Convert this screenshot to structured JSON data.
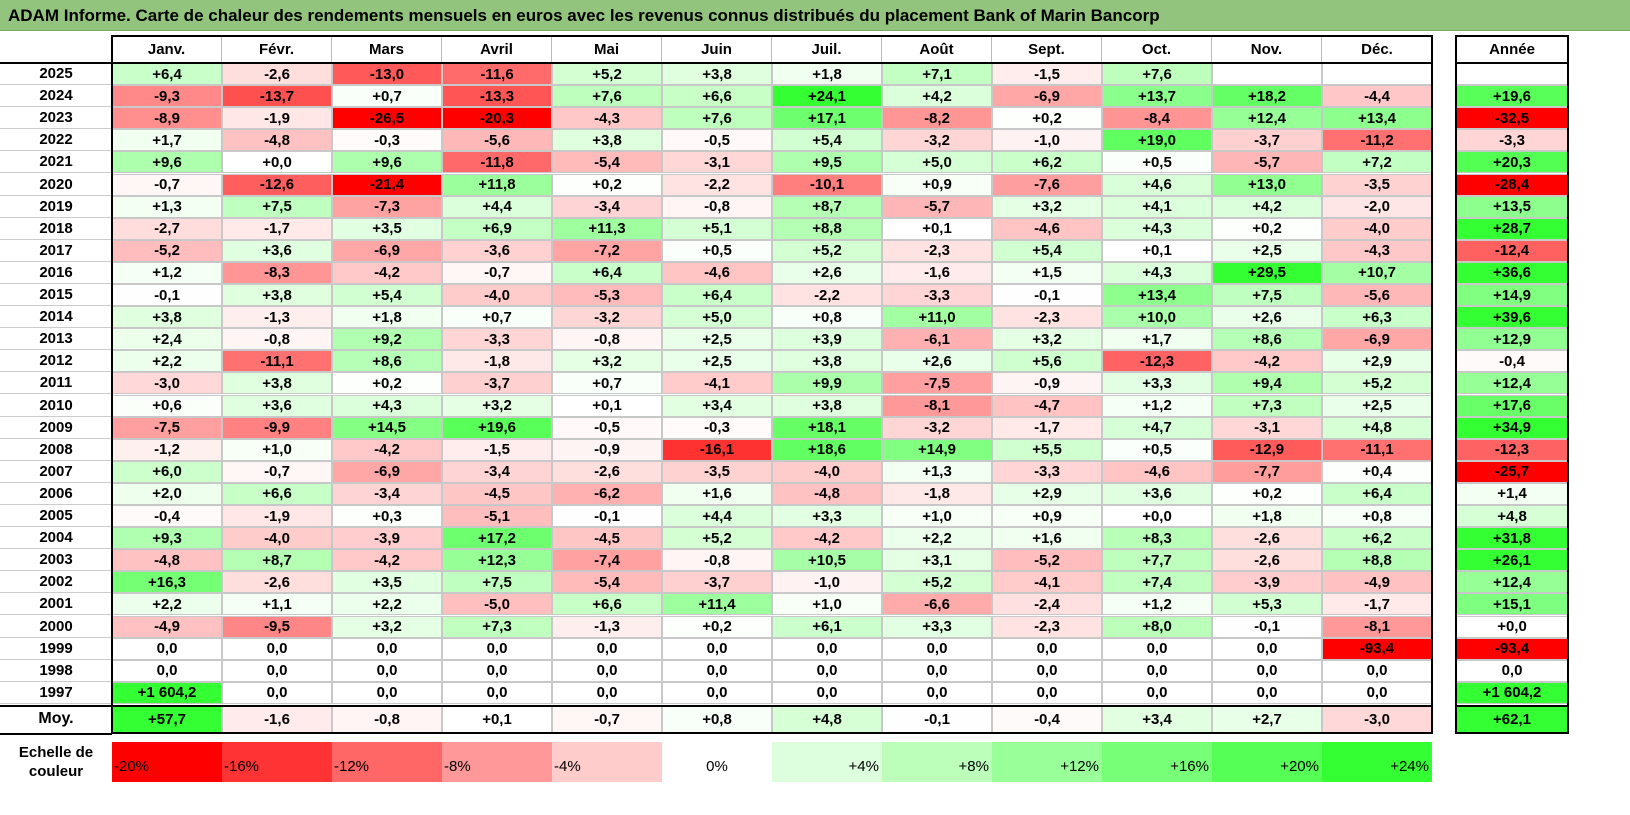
{
  "title": "ADAM Informe. Carte de chaleur des rendements mensuels en euros avec les revenus connus distribués du placement Bank of Marin Bancorp",
  "chart_data": {
    "type": "heatmap",
    "columns": [
      "Janv.",
      "Févr.",
      "Mars",
      "Avril",
      "Mai",
      "Juin",
      "Juil.",
      "Août",
      "Sept.",
      "Oct.",
      "Nov.",
      "Déc."
    ],
    "year_column_label": "Année",
    "rows": [
      {
        "year": "2025",
        "values": [
          "+6,4",
          "-2,6",
          "-13,0",
          "-11,6",
          "+5,2",
          "+3,8",
          "+1,8",
          "+7,1",
          "-1,5",
          "+7,6",
          "",
          ""
        ],
        "annual": ""
      },
      {
        "year": "2024",
        "values": [
          "-9,3",
          "-13,7",
          "+0,7",
          "-13,3",
          "+7,6",
          "+6,6",
          "+24,1",
          "+4,2",
          "-6,9",
          "+13,7",
          "+18,2",
          "-4,4"
        ],
        "annual": "+19,6"
      },
      {
        "year": "2023",
        "values": [
          "-8,9",
          "-1,9",
          "-26,5",
          "-20,3",
          "-4,3",
          "+7,6",
          "+17,1",
          "-8,2",
          "+0,2",
          "-8,4",
          "+12,4",
          "+13,4"
        ],
        "annual": "-32,5"
      },
      {
        "year": "2022",
        "values": [
          "+1,7",
          "-4,8",
          "-0,3",
          "-5,6",
          "+3,8",
          "-0,5",
          "+5,4",
          "-3,2",
          "-1,0",
          "+19,0",
          "-3,7",
          "-11,2"
        ],
        "annual": "-3,3"
      },
      {
        "year": "2021",
        "values": [
          "+9,6",
          "+0,0",
          "+9,6",
          "-11,8",
          "-5,4",
          "-3,1",
          "+9,5",
          "+5,0",
          "+6,2",
          "+0,5",
          "-5,7",
          "+7,2"
        ],
        "annual": "+20,3"
      },
      {
        "year": "2020",
        "values": [
          "-0,7",
          "-12,6",
          "-21,4",
          "+11,8",
          "+0,2",
          "-2,2",
          "-10,1",
          "+0,9",
          "-7,6",
          "+4,6",
          "+13,0",
          "-3,5"
        ],
        "annual": "-28,4"
      },
      {
        "year": "2019",
        "values": [
          "+1,3",
          "+7,5",
          "-7,3",
          "+4,4",
          "-3,4",
          "-0,8",
          "+8,7",
          "-5,7",
          "+3,2",
          "+4,1",
          "+4,2",
          "-2,0"
        ],
        "annual": "+13,5"
      },
      {
        "year": "2018",
        "values": [
          "-2,7",
          "-1,7",
          "+3,5",
          "+6,9",
          "+11,3",
          "+5,1",
          "+8,8",
          "+0,1",
          "-4,6",
          "+4,3",
          "+0,2",
          "-4,0"
        ],
        "annual": "+28,7"
      },
      {
        "year": "2017",
        "values": [
          "-5,2",
          "+3,6",
          "-6,9",
          "-3,6",
          "-7,2",
          "+0,5",
          "+5,2",
          "-2,3",
          "+5,4",
          "+0,1",
          "+2,5",
          "-4,3"
        ],
        "annual": "-12,4"
      },
      {
        "year": "2016",
        "values": [
          "+1,2",
          "-8,3",
          "-4,2",
          "-0,7",
          "+6,4",
          "-4,6",
          "+2,6",
          "-1,6",
          "+1,5",
          "+4,3",
          "+29,5",
          "+10,7"
        ],
        "annual": "+36,6"
      },
      {
        "year": "2015",
        "values": [
          "-0,1",
          "+3,8",
          "+5,4",
          "-4,0",
          "-5,3",
          "+6,4",
          "-2,2",
          "-3,3",
          "-0,1",
          "+13,4",
          "+7,5",
          "-5,6"
        ],
        "annual": "+14,9"
      },
      {
        "year": "2014",
        "values": [
          "+3,8",
          "-1,3",
          "+1,8",
          "+0,7",
          "-3,2",
          "+5,0",
          "+0,8",
          "+11,0",
          "-2,3",
          "+10,0",
          "+2,6",
          "+6,3"
        ],
        "annual": "+39,6"
      },
      {
        "year": "2013",
        "values": [
          "+2,4",
          "-0,8",
          "+9,2",
          "-3,3",
          "-0,8",
          "+2,5",
          "+3,9",
          "-6,1",
          "+3,2",
          "+1,7",
          "+8,6",
          "-6,9"
        ],
        "annual": "+12,9"
      },
      {
        "year": "2012",
        "values": [
          "+2,2",
          "-11,1",
          "+8,6",
          "-1,8",
          "+3,2",
          "+2,5",
          "+3,8",
          "+2,6",
          "+5,6",
          "-12,3",
          "-4,2",
          "+2,9"
        ],
        "annual": "-0,4"
      },
      {
        "year": "2011",
        "values": [
          "-3,0",
          "+3,8",
          "+0,2",
          "-3,7",
          "+0,7",
          "-4,1",
          "+9,9",
          "-7,5",
          "-0,9",
          "+3,3",
          "+9,4",
          "+5,2"
        ],
        "annual": "+12,4"
      },
      {
        "year": "2010",
        "values": [
          "+0,6",
          "+3,6",
          "+4,3",
          "+3,2",
          "+0,1",
          "+3,4",
          "+3,8",
          "-8,1",
          "-4,7",
          "+1,2",
          "+7,3",
          "+2,5"
        ],
        "annual": "+17,6"
      },
      {
        "year": "2009",
        "values": [
          "-7,5",
          "-9,9",
          "+14,5",
          "+19,6",
          "-0,5",
          "-0,3",
          "+18,1",
          "-3,2",
          "-1,7",
          "+4,7",
          "-3,1",
          "+4,8"
        ],
        "annual": "+34,9"
      },
      {
        "year": "2008",
        "values": [
          "-1,2",
          "+1,0",
          "-4,2",
          "-1,5",
          "-0,9",
          "-16,1",
          "+18,6",
          "+14,9",
          "+5,5",
          "+0,5",
          "-12,9",
          "-11,1"
        ],
        "annual": "-12,3"
      },
      {
        "year": "2007",
        "values": [
          "+6,0",
          "-0,7",
          "-6,9",
          "-3,4",
          "-2,6",
          "-3,5",
          "-4,0",
          "+1,3",
          "-3,3",
          "-4,6",
          "-7,7",
          "+0,4"
        ],
        "annual": "-25,7"
      },
      {
        "year": "2006",
        "values": [
          "+2,0",
          "+6,6",
          "-3,4",
          "-4,5",
          "-6,2",
          "+1,6",
          "-4,8",
          "-1,8",
          "+2,9",
          "+3,6",
          "+0,2",
          "+6,4"
        ],
        "annual": "+1,4"
      },
      {
        "year": "2005",
        "values": [
          "-0,4",
          "-1,9",
          "+0,3",
          "-5,1",
          "-0,1",
          "+4,4",
          "+3,3",
          "+1,0",
          "+0,9",
          "+0,0",
          "+1,8",
          "+0,8"
        ],
        "annual": "+4,8"
      },
      {
        "year": "2004",
        "values": [
          "+9,3",
          "-4,0",
          "-3,9",
          "+17,2",
          "-4,5",
          "+5,2",
          "-4,2",
          "+2,2",
          "+1,6",
          "+8,3",
          "-2,6",
          "+6,2"
        ],
        "annual": "+31,8"
      },
      {
        "year": "2003",
        "values": [
          "-4,8",
          "+8,7",
          "-4,2",
          "+12,3",
          "-7,4",
          "-0,8",
          "+10,5",
          "+3,1",
          "-5,2",
          "+7,7",
          "-2,6",
          "+8,8"
        ],
        "annual": "+26,1"
      },
      {
        "year": "2002",
        "values": [
          "+16,3",
          "-2,6",
          "+3,5",
          "+7,5",
          "-5,4",
          "-3,7",
          "-1,0",
          "+5,2",
          "-4,1",
          "+7,4",
          "-3,9",
          "-4,9"
        ],
        "annual": "+12,4"
      },
      {
        "year": "2001",
        "values": [
          "+2,2",
          "+1,1",
          "+2,2",
          "-5,0",
          "+6,6",
          "+11,4",
          "+1,0",
          "-6,6",
          "-2,4",
          "+1,2",
          "+5,3",
          "-1,7"
        ],
        "annual": "+15,1"
      },
      {
        "year": "2000",
        "values": [
          "-4,9",
          "-9,5",
          "+3,2",
          "+7,3",
          "-1,3",
          "+0,2",
          "+6,1",
          "+3,3",
          "-2,3",
          "+8,0",
          "-0,1",
          "-8,1"
        ],
        "annual": "+0,0"
      },
      {
        "year": "1999",
        "values": [
          "0,0",
          "0,0",
          "0,0",
          "0,0",
          "0,0",
          "0,0",
          "0,0",
          "0,0",
          "0,0",
          "0,0",
          "0,0",
          "-93,4"
        ],
        "annual": "-93,4"
      },
      {
        "year": "1998",
        "values": [
          "0,0",
          "0,0",
          "0,0",
          "0,0",
          "0,0",
          "0,0",
          "0,0",
          "0,0",
          "0,0",
          "0,0",
          "0,0",
          "0,0"
        ],
        "annual": "0,0"
      },
      {
        "year": "1997",
        "values": [
          "+1 604,2",
          "0,0",
          "0,0",
          "0,0",
          "0,0",
          "0,0",
          "0,0",
          "0,0",
          "0,0",
          "0,0",
          "0,0",
          "0,0"
        ],
        "annual": "+1 604,2"
      }
    ],
    "average": {
      "label": "Moy.",
      "values": [
        "+57,7",
        "-1,6",
        "-0,8",
        "+0,1",
        "-0,7",
        "+0,8",
        "+4,8",
        "-0,1",
        "-0,4",
        "+3,4",
        "+2,7",
        "-3,0"
      ],
      "annual": "+62,1"
    },
    "color_scale": {
      "label": "Echelle de couleur",
      "stops": [
        "-20%",
        "-16%",
        "-12%",
        "-8%",
        "-4%",
        "0%",
        "+4%",
        "+8%",
        "+12%",
        "+16%",
        "+20%",
        "+24%"
      ],
      "min": -20,
      "max": 24
    },
    "colors": {
      "negative_max": "#ff0000",
      "positive_max": "#33ff33",
      "neutral": "#ffffff",
      "title_bar": "#92c47d"
    }
  }
}
